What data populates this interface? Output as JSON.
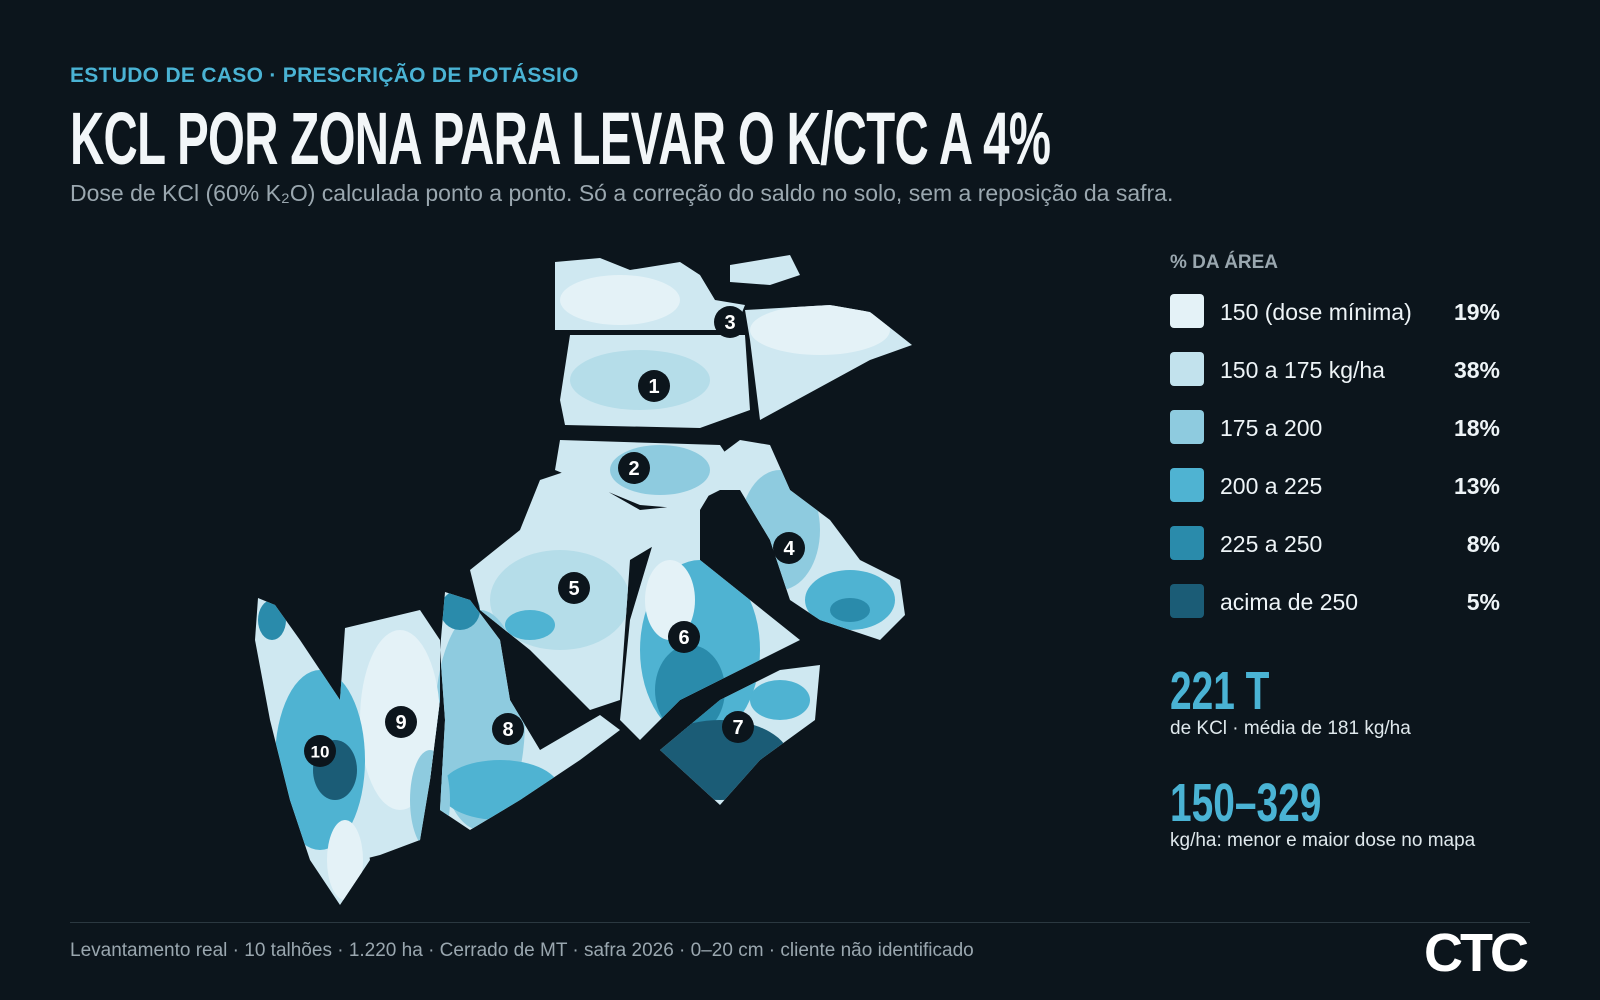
{
  "header": {
    "eyebrow": "ESTUDO DE CASO · PRESCRIÇÃO DE POTÁSSIO",
    "title": "KCL POR ZONA PARA LEVAR O K/CTC A 4%",
    "subtitle": "Dose de KCl (60% K₂O) calculada ponto a ponto. Só a correção do saldo no solo, sem a reposição da safra."
  },
  "map": {
    "fields": [
      "1",
      "2",
      "3",
      "4",
      "5",
      "6",
      "7",
      "8",
      "9",
      "10"
    ]
  },
  "legend": {
    "heading": "% DA ÁREA",
    "items": [
      {
        "label": "150 (dose mínima)",
        "share": "19%",
        "color": "#e4f2f7"
      },
      {
        "label": "150 a 175 kg/ha",
        "share": "38%",
        "color": "#c2e2ed"
      },
      {
        "label": "175 a 200",
        "share": "18%",
        "color": "#8ecbdf"
      },
      {
        "label": "200 a 225",
        "share": "13%",
        "color": "#4fb3d2"
      },
      {
        "label": "225 a 250",
        "share": "8%",
        "color": "#2a8bab"
      },
      {
        "label": "acima de 250",
        "share": "5%",
        "color": "#1b5c76"
      }
    ]
  },
  "stats": [
    {
      "value": "221 T",
      "caption": "de KCl · média de 181 kg/ha"
    },
    {
      "value": "150–329",
      "caption": "kg/ha: menor e maior dose no mapa"
    }
  ],
  "footer": {
    "note": "Levantamento real · 10 talhões · 1.220 ha · Cerrado de MT · safra 2026 · 0–20 cm · cliente não identificado",
    "logo": "CTC"
  }
}
